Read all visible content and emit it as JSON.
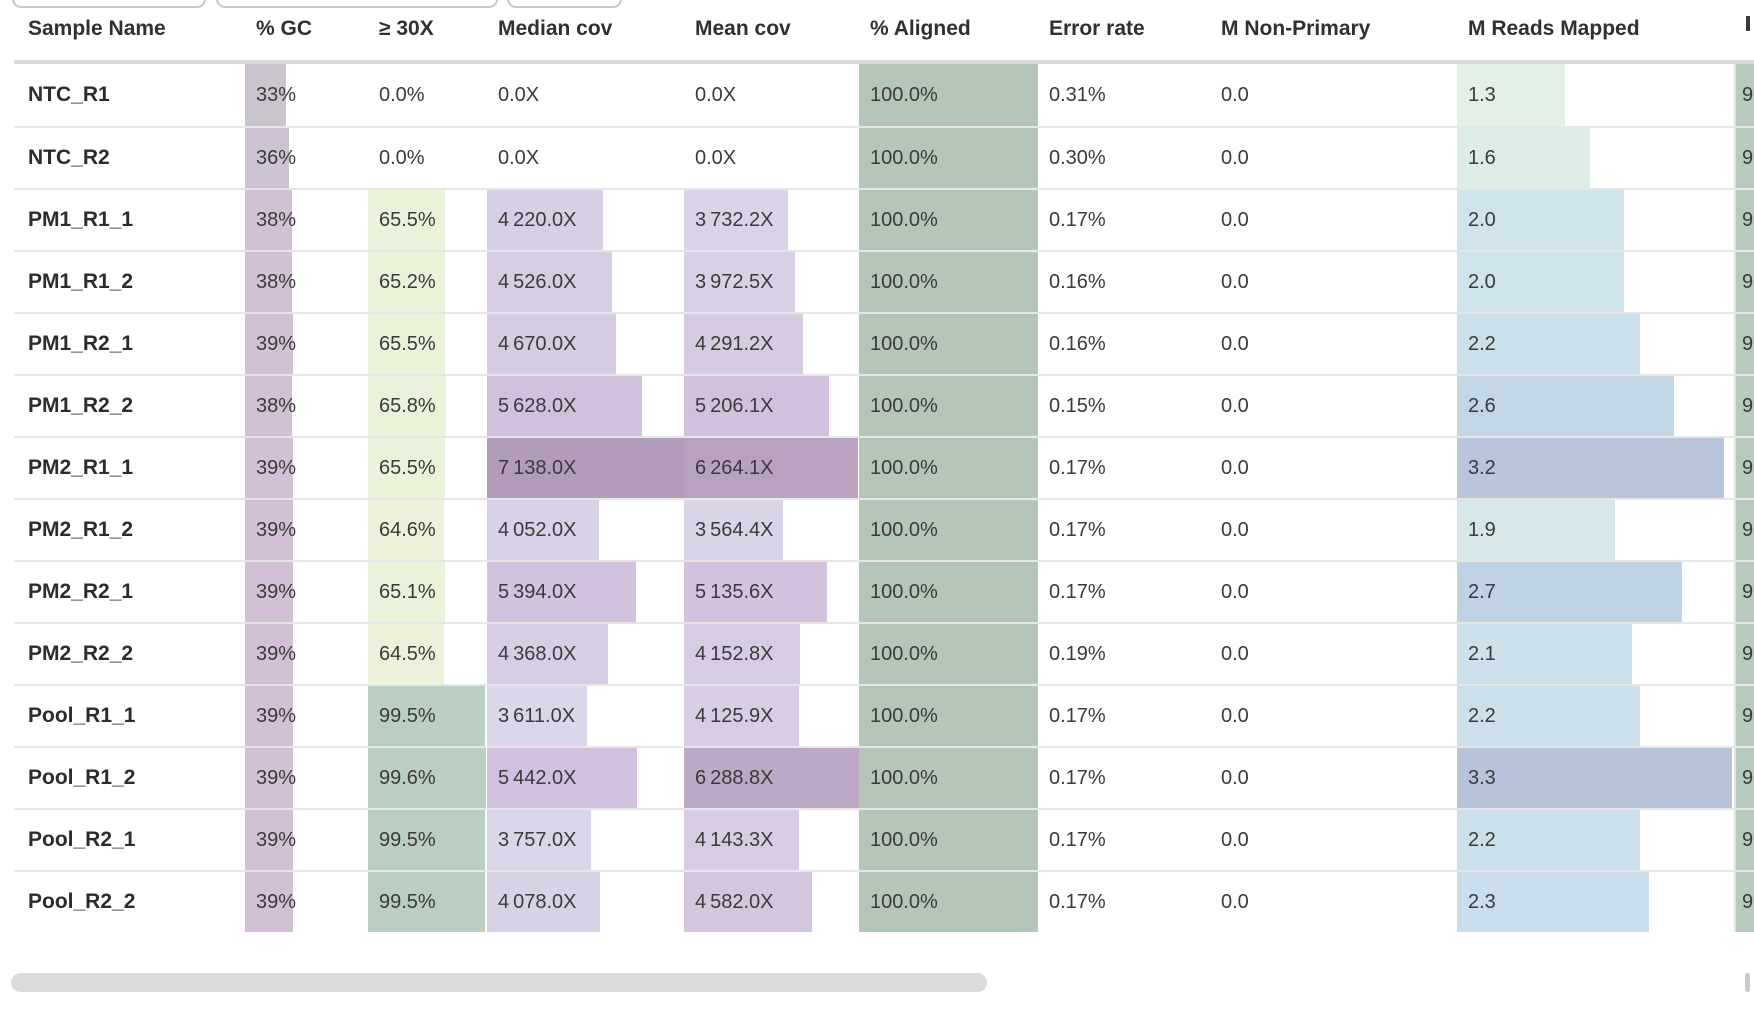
{
  "table": {
    "columns": [
      {
        "key": "sample",
        "label": "Sample Name"
      },
      {
        "key": "gc",
        "label": "% GC",
        "max": 100
      },
      {
        "key": "thirty",
        "label": "≥ 30X",
        "max": 100
      },
      {
        "key": "median",
        "label": "Median cov",
        "max": 7138
      },
      {
        "key": "mean",
        "label": "Mean cov",
        "max": 6288.8
      },
      {
        "key": "aligned",
        "label": "% Aligned",
        "max": 100
      },
      {
        "key": "error",
        "label": "Error rate"
      },
      {
        "key": "nonprimary",
        "label": "M Non-Primary"
      },
      {
        "key": "mreads",
        "label": "M Reads Mapped",
        "max": 3.3
      },
      {
        "key": "clip",
        "label": "",
        "max": 100
      }
    ],
    "rows": [
      {
        "sample": "NTC_R1",
        "cells": [
          {
            "t": "33%",
            "v": 33,
            "c": "#c9c4ce"
          },
          {
            "t": "0.0%"
          },
          {
            "t": "0.0X"
          },
          {
            "t": "0.0X"
          },
          {
            "t": "100.0%",
            "v": 100,
            "c": "#b4c6b8"
          },
          {
            "t": "0.31%"
          },
          {
            "t": "0.0"
          },
          {
            "t": "1.3",
            "v": 1.3,
            "c": "#e3f0e6"
          },
          {
            "t": "9",
            "v": 100,
            "c": "#b6cabd"
          }
        ]
      },
      {
        "sample": "NTC_R2",
        "cells": [
          {
            "t": "36%",
            "v": 36,
            "c": "#cdc3d4"
          },
          {
            "t": "0.0%"
          },
          {
            "t": "0.0X"
          },
          {
            "t": "0.0X"
          },
          {
            "t": "100.0%",
            "v": 100,
            "c": "#b4c6b8"
          },
          {
            "t": "0.30%"
          },
          {
            "t": "0.0"
          },
          {
            "t": "1.6",
            "v": 1.6,
            "c": "#dcece7"
          },
          {
            "t": "9",
            "v": 100,
            "c": "#b6cabd"
          }
        ]
      },
      {
        "sample": "PM1_R1_1",
        "cells": [
          {
            "t": "38%",
            "v": 38,
            "c": "#d2c1d5"
          },
          {
            "t": "65.5%",
            "v": 65.5,
            "c": "#ebf2da"
          },
          {
            "t": "4 220.0X",
            "v": 4220,
            "c": "#d7cfe6"
          },
          {
            "t": "3 732.2X",
            "v": 3732.2,
            "c": "#d9d2e8"
          },
          {
            "t": "100.0%",
            "v": 100,
            "c": "#b4c6b8"
          },
          {
            "t": "0.17%"
          },
          {
            "t": "0.0"
          },
          {
            "t": "2.0",
            "v": 2.0,
            "c": "#cfe3ec"
          },
          {
            "t": "9",
            "v": 100,
            "c": "#b6cabd"
          }
        ]
      },
      {
        "sample": "PM1_R1_2",
        "cells": [
          {
            "t": "38%",
            "v": 38,
            "c": "#d2c1d5"
          },
          {
            "t": "65.2%",
            "v": 65.2,
            "c": "#ebf2da"
          },
          {
            "t": "4 526.0X",
            "v": 4526,
            "c": "#d6cde4"
          },
          {
            "t": "3 972.5X",
            "v": 3972.5,
            "c": "#d8d0e6"
          },
          {
            "t": "100.0%",
            "v": 100,
            "c": "#b4c6b8"
          },
          {
            "t": "0.16%"
          },
          {
            "t": "0.0"
          },
          {
            "t": "2.0",
            "v": 2.0,
            "c": "#cfe3ec"
          },
          {
            "t": "9",
            "v": 100,
            "c": "#b6cabd"
          }
        ]
      },
      {
        "sample": "PM1_R2_1",
        "cells": [
          {
            "t": "39%",
            "v": 39,
            "c": "#d4c0d6"
          },
          {
            "t": "65.5%",
            "v": 65.5,
            "c": "#ebf2da"
          },
          {
            "t": "4 670.0X",
            "v": 4670,
            "c": "#d5cbe3"
          },
          {
            "t": "4 291.2X",
            "v": 4291.2,
            "c": "#d6cbe2"
          },
          {
            "t": "100.0%",
            "v": 100,
            "c": "#b4c6b8"
          },
          {
            "t": "0.16%"
          },
          {
            "t": "0.0"
          },
          {
            "t": "2.2",
            "v": 2.2,
            "c": "#cce0eb"
          },
          {
            "t": "9",
            "v": 100,
            "c": "#b6cabd"
          }
        ]
      },
      {
        "sample": "PM1_R2_2",
        "cells": [
          {
            "t": "38%",
            "v": 38,
            "c": "#d2c1d5"
          },
          {
            "t": "65.8%",
            "v": 65.8,
            "c": "#ebf2da"
          },
          {
            "t": "5 628.0X",
            "v": 5628,
            "c": "#d2c0dd"
          },
          {
            "t": "5 206.1X",
            "v": 5206.1,
            "c": "#d2c0dd"
          },
          {
            "t": "100.0%",
            "v": 100,
            "c": "#b4c6b8"
          },
          {
            "t": "0.15%"
          },
          {
            "t": "0.0"
          },
          {
            "t": "2.6",
            "v": 2.6,
            "c": "#c3d6e6"
          },
          {
            "t": "9",
            "v": 100,
            "c": "#b6cabd"
          }
        ]
      },
      {
        "sample": "PM2_R1_1",
        "cells": [
          {
            "t": "39%",
            "v": 39,
            "c": "#d4c0d6"
          },
          {
            "t": "65.5%",
            "v": 65.5,
            "c": "#ebf2da"
          },
          {
            "t": "7 138.0X",
            "v": 7138,
            "c": "#b39bba"
          },
          {
            "t": "6 264.1X",
            "v": 6264.1,
            "c": "#b8a2c0"
          },
          {
            "t": "100.0%",
            "v": 100,
            "c": "#b4c6b8"
          },
          {
            "t": "0.17%"
          },
          {
            "t": "0.0"
          },
          {
            "t": "3.2",
            "v": 3.2,
            "c": "#b9c5da"
          },
          {
            "t": "9",
            "v": 100,
            "c": "#b6cabd"
          }
        ]
      },
      {
        "sample": "PM2_R1_2",
        "cells": [
          {
            "t": "39%",
            "v": 39,
            "c": "#d4c0d6"
          },
          {
            "t": "64.6%",
            "v": 64.6,
            "c": "#ecf2da"
          },
          {
            "t": "4 052.0X",
            "v": 4052,
            "c": "#d8d1e7"
          },
          {
            "t": "3 564.4X",
            "v": 3564.4,
            "c": "#dad4e9"
          },
          {
            "t": "100.0%",
            "v": 100,
            "c": "#b4c6b8"
          },
          {
            "t": "0.17%"
          },
          {
            "t": "0.0"
          },
          {
            "t": "1.9",
            "v": 1.9,
            "c": "#d5e7e8"
          },
          {
            "t": "9",
            "v": 100,
            "c": "#b6cabd"
          }
        ]
      },
      {
        "sample": "PM2_R2_1",
        "cells": [
          {
            "t": "39%",
            "v": 39,
            "c": "#d4c0d6"
          },
          {
            "t": "65.1%",
            "v": 65.1,
            "c": "#ebf2da"
          },
          {
            "t": "5 394.0X",
            "v": 5394,
            "c": "#d3c3df"
          },
          {
            "t": "5 135.6X",
            "v": 5135.6,
            "c": "#d4c2de"
          },
          {
            "t": "100.0%",
            "v": 100,
            "c": "#b4c6b8"
          },
          {
            "t": "0.17%"
          },
          {
            "t": "0.0"
          },
          {
            "t": "2.7",
            "v": 2.7,
            "c": "#bed2e4"
          },
          {
            "t": "9",
            "v": 100,
            "c": "#b6cabd"
          }
        ]
      },
      {
        "sample": "PM2_R2_2",
        "cells": [
          {
            "t": "39%",
            "v": 39,
            "c": "#d4c0d6"
          },
          {
            "t": "64.5%",
            "v": 64.5,
            "c": "#ecf2da"
          },
          {
            "t": "4 368.0X",
            "v": 4368,
            "c": "#d7cee5"
          },
          {
            "t": "4 152.8X",
            "v": 4152.8,
            "c": "#d8cce4"
          },
          {
            "t": "100.0%",
            "v": 100,
            "c": "#b4c6b8"
          },
          {
            "t": "0.19%"
          },
          {
            "t": "0.0"
          },
          {
            "t": "2.1",
            "v": 2.1,
            "c": "#cde1ec"
          },
          {
            "t": "9",
            "v": 100,
            "c": "#b6cabd"
          }
        ]
      },
      {
        "sample": "Pool_R1_1",
        "cells": [
          {
            "t": "39%",
            "v": 39,
            "c": "#d4c0d6"
          },
          {
            "t": "99.5%",
            "v": 99.5,
            "c": "#b8cfc1"
          },
          {
            "t": "3 611.0X",
            "v": 3611,
            "c": "#dbd7ea"
          },
          {
            "t": "4 125.9X",
            "v": 4125.9,
            "c": "#d8cde5"
          },
          {
            "t": "100.0%",
            "v": 100,
            "c": "#b4c6b8"
          },
          {
            "t": "0.17%"
          },
          {
            "t": "0.0"
          },
          {
            "t": "2.2",
            "v": 2.2,
            "c": "#cce0eb"
          },
          {
            "t": "9",
            "v": 100,
            "c": "#b6cabd"
          }
        ]
      },
      {
        "sample": "Pool_R1_2",
        "cells": [
          {
            "t": "39%",
            "v": 39,
            "c": "#d4c0d6"
          },
          {
            "t": "99.6%",
            "v": 99.6,
            "c": "#b8cfc1"
          },
          {
            "t": "5 442.0X",
            "v": 5442,
            "c": "#d2c1de"
          },
          {
            "t": "6 288.8X",
            "v": 6288.8,
            "c": "#bda8c6"
          },
          {
            "t": "100.0%",
            "v": 100,
            "c": "#b4c6b8"
          },
          {
            "t": "0.17%"
          },
          {
            "t": "0.0"
          },
          {
            "t": "3.3",
            "v": 3.3,
            "c": "#b7c3d9"
          },
          {
            "t": "9",
            "v": 100,
            "c": "#b6cabd"
          }
        ]
      },
      {
        "sample": "Pool_R2_1",
        "cells": [
          {
            "t": "39%",
            "v": 39,
            "c": "#d4c0d6"
          },
          {
            "t": "99.5%",
            "v": 99.5,
            "c": "#b8cfc1"
          },
          {
            "t": "3 757.0X",
            "v": 3757,
            "c": "#dad6e9"
          },
          {
            "t": "4 143.3X",
            "v": 4143.3,
            "c": "#d8cce4"
          },
          {
            "t": "100.0%",
            "v": 100,
            "c": "#b4c6b8"
          },
          {
            "t": "0.17%"
          },
          {
            "t": "0.0"
          },
          {
            "t": "2.2",
            "v": 2.2,
            "c": "#cce0eb"
          },
          {
            "t": "9",
            "v": 100,
            "c": "#b6cabd"
          }
        ]
      },
      {
        "sample": "Pool_R2_2",
        "cells": [
          {
            "t": "39%",
            "v": 39,
            "c": "#d4c0d6"
          },
          {
            "t": "99.5%",
            "v": 99.5,
            "c": "#b8cfc1"
          },
          {
            "t": "4 078.0X",
            "v": 4078,
            "c": "#d8d2e7"
          },
          {
            "t": "4 582.0X",
            "v": 4582,
            "c": "#d5c6e0"
          },
          {
            "t": "100.0%",
            "v": 100,
            "c": "#b4c6b8"
          },
          {
            "t": "0.17%"
          },
          {
            "t": "0.0"
          },
          {
            "t": "2.3",
            "v": 2.3,
            "c": "#c9dded"
          },
          {
            "t": "9",
            "v": 100,
            "c": "#b6cabd"
          }
        ]
      }
    ]
  }
}
